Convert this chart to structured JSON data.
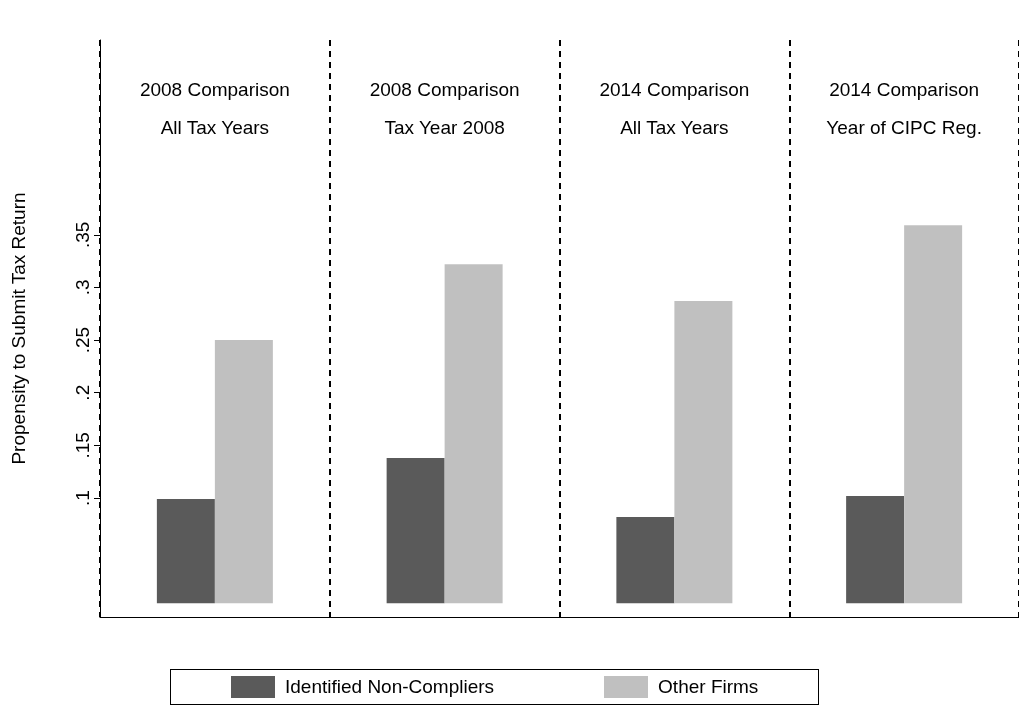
{
  "chart_data": {
    "type": "bar",
    "ylabel": "Propensity to Submit Tax Return",
    "categories": [
      "2008 Comparison\nAll Tax Years",
      "2008 Comparison\nTax Year 2008",
      "2014 Comparison\nAll Tax Years",
      "2014 Comparison\nYear of CIPC Reg."
    ],
    "series": [
      {
        "name": "Identified Non-Compliers",
        "color": "#5a5a5a",
        "values": [
          0.099,
          0.138,
          0.082,
          0.102
        ]
      },
      {
        "name": "Other Firms",
        "color": "#c0c0c0",
        "values": [
          0.25,
          0.322,
          0.287,
          0.359
        ]
      }
    ],
    "ylim": [
      -0.013,
      0.535
    ],
    "yticks": [
      {
        "value": 0.1,
        "label": ".1"
      },
      {
        "value": 0.15,
        "label": ".15"
      },
      {
        "value": 0.2,
        "label": ".2"
      },
      {
        "value": 0.25,
        "label": ".25"
      },
      {
        "value": 0.3,
        "label": ".3"
      },
      {
        "value": 0.35,
        "label": ".35"
      }
    ],
    "grid": "x",
    "line_style": "dashed",
    "legend": "bottom"
  }
}
